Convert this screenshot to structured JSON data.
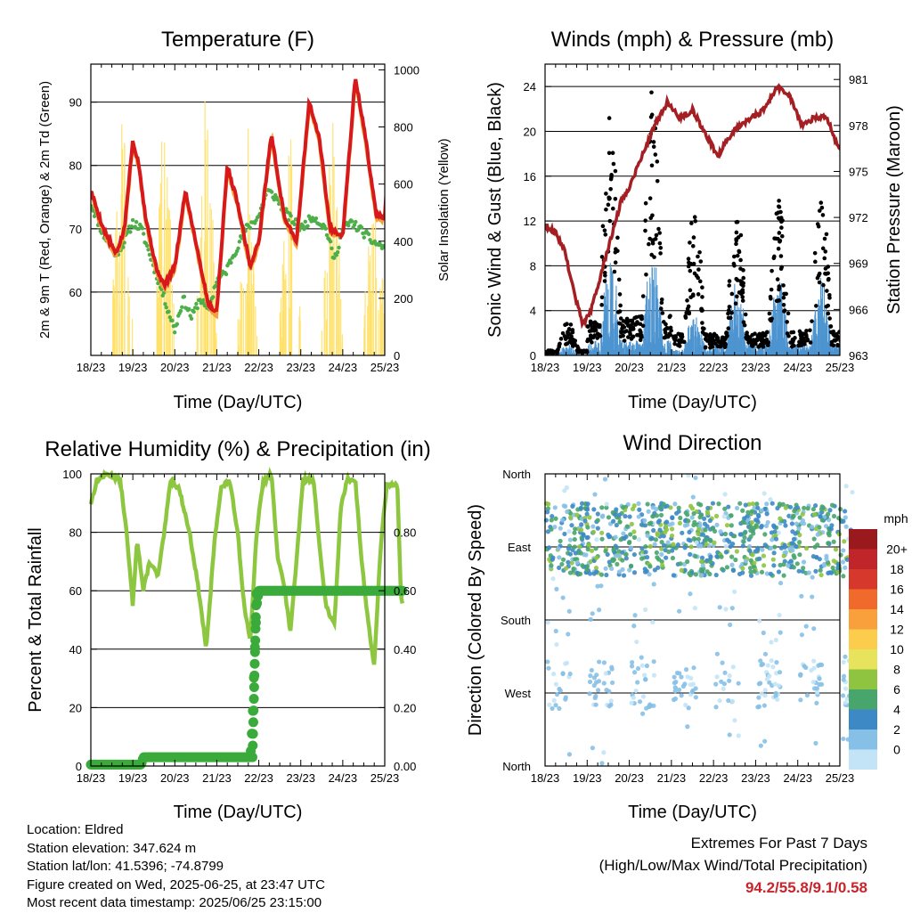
{
  "chart_data": [
    {
      "id": "temperature",
      "type": "line",
      "title": "Temperature (F)",
      "xlabel": "Time (Day/UTC)",
      "ylabel": "2m & 9m T (Red, Orange) & 2m Td (Green)",
      "ylabel_right": "Solar Insolation (Yellow)",
      "x_ticks": [
        "18/23",
        "19/23",
        "20/23",
        "21/23",
        "22/23",
        "23/23",
        "24/23",
        "25/23"
      ],
      "ylim": [
        50,
        96
      ],
      "y_ticks": [
        60,
        70,
        80,
        90
      ],
      "ylim_right": [
        0,
        1020
      ],
      "y_ticks_right": [
        0,
        200,
        400,
        600,
        800,
        1000
      ],
      "grid": true,
      "series": [
        {
          "color": "#d7191c",
          "axis": "left",
          "points": [
            [
              0,
              76
            ],
            [
              0.3,
              70
            ],
            [
              0.6,
              66
            ],
            [
              0.8,
              70
            ],
            [
              1.0,
              84
            ],
            [
              1.15,
              80
            ],
            [
              1.3,
              72
            ],
            [
              1.55,
              64
            ],
            [
              1.75,
              61
            ],
            [
              2.0,
              64
            ],
            [
              2.25,
              76
            ],
            [
              2.5,
              68
            ],
            [
              2.8,
              58
            ],
            [
              3.0,
              57
            ],
            [
              3.25,
              80
            ],
            [
              3.5,
              74
            ],
            [
              3.8,
              64
            ],
            [
              4.0,
              68
            ],
            [
              4.3,
              85
            ],
            [
              4.6,
              72
            ],
            [
              4.9,
              68
            ],
            [
              5.2,
              90
            ],
            [
              5.45,
              84
            ],
            [
              5.7,
              70
            ],
            [
              6.0,
              69
            ],
            [
              6.3,
              94
            ],
            [
              6.55,
              84
            ],
            [
              6.8,
              72
            ],
            [
              7.0,
              72
            ],
            [
              7.2,
              91
            ],
            [
              7.35,
              88
            ],
            [
              7.42,
              82
            ]
          ]
        },
        {
          "color": "#f4a23c",
          "axis": "left",
          "points": [
            [
              0,
              75.5
            ],
            [
              0.3,
              69.5
            ],
            [
              0.6,
              65.5
            ],
            [
              0.8,
              69.5
            ],
            [
              1.0,
              83.5
            ],
            [
              1.15,
              79.5
            ],
            [
              1.3,
              71.5
            ],
            [
              1.55,
              63.5
            ],
            [
              1.75,
              60.5
            ],
            [
              2.0,
              63.5
            ],
            [
              2.25,
              75.5
            ],
            [
              2.5,
              67.5
            ],
            [
              2.8,
              57.5
            ],
            [
              3.0,
              56.5
            ],
            [
              3.25,
              79.5
            ],
            [
              3.5,
              73.5
            ],
            [
              3.8,
              63.5
            ],
            [
              4.0,
              67.5
            ],
            [
              4.3,
              84.5
            ],
            [
              4.6,
              71.5
            ],
            [
              4.9,
              67.5
            ],
            [
              5.2,
              89.5
            ],
            [
              5.45,
              83.5
            ],
            [
              5.7,
              69.5
            ],
            [
              6.0,
              68.5
            ],
            [
              6.3,
              93.5
            ],
            [
              6.55,
              83.5
            ],
            [
              6.8,
              71.5
            ],
            [
              7.0,
              71.5
            ],
            [
              7.2,
              90.5
            ],
            [
              7.35,
              87.5
            ],
            [
              7.42,
              81.5
            ]
          ]
        },
        {
          "color": "#4daf4a",
          "axis": "left",
          "style": "dots",
          "points": [
            [
              0,
              74
            ],
            [
              0.3,
              69
            ],
            [
              0.6,
              66
            ],
            [
              0.8,
              68
            ],
            [
              1.0,
              71
            ],
            [
              1.2,
              70
            ],
            [
              1.4,
              66
            ],
            [
              1.6,
              62
            ],
            [
              1.8,
              58
            ],
            [
              2.0,
              54
            ],
            [
              2.2,
              59
            ],
            [
              2.4,
              56
            ],
            [
              2.6,
              59
            ],
            [
              2.8,
              57
            ],
            [
              3.0,
              62
            ],
            [
              3.2,
              63
            ],
            [
              3.4,
              66
            ],
            [
              3.7,
              70
            ],
            [
              4.0,
              72
            ],
            [
              4.2,
              76
            ],
            [
              4.4,
              75
            ],
            [
              4.7,
              72
            ],
            [
              5.0,
              70
            ],
            [
              5.3,
              72
            ],
            [
              5.6,
              70
            ],
            [
              5.8,
              65
            ],
            [
              6.0,
              70
            ],
            [
              6.2,
              71
            ],
            [
              6.4,
              70
            ],
            [
              6.7,
              68
            ],
            [
              7.0,
              67
            ],
            [
              7.2,
              70
            ],
            [
              7.42,
              68
            ]
          ]
        },
        {
          "color": "#ffe066",
          "axis": "right",
          "style": "spikes",
          "points": [
            [
              0.75,
              960
            ],
            [
              1.75,
              940
            ],
            [
              2.75,
              1000
            ],
            [
              3.75,
              810
            ],
            [
              4.75,
              850
            ],
            [
              5.75,
              950
            ],
            [
              6.75,
              920
            ],
            [
              7.25,
              880
            ]
          ]
        }
      ]
    },
    {
      "id": "winds",
      "type": "scatter",
      "title": "Winds (mph) & Pressure (mb)",
      "xlabel": "Time (Day/UTC)",
      "ylabel": "Sonic Wind & Gust (Blue, Black)",
      "ylabel_right": "Station Pressure (Maroon)",
      "x_ticks": [
        "18/23",
        "19/23",
        "20/23",
        "21/23",
        "22/23",
        "23/23",
        "24/23",
        "25/23"
      ],
      "ylim": [
        0,
        26
      ],
      "y_ticks": [
        0,
        4,
        8,
        12,
        16,
        20,
        24
      ],
      "ylim_right": [
        963,
        982
      ],
      "y_ticks_right": [
        963,
        966,
        969,
        972,
        975,
        978,
        981
      ],
      "grid": true,
      "daily_peak_gust": [
        3,
        22,
        24,
        13,
        13,
        14,
        15,
        12
      ],
      "daily_peak_wind": [
        1,
        9,
        9,
        4,
        7,
        7,
        7,
        6
      ],
      "series": [
        {
          "color": "#a31f24",
          "axis": "right",
          "points": [
            [
              0,
              971.5
            ],
            [
              0.25,
              971
            ],
            [
              0.45,
              970
            ],
            [
              0.7,
              967
            ],
            [
              0.9,
              965
            ],
            [
              1.1,
              966
            ],
            [
              1.3,
              968
            ],
            [
              1.6,
              971
            ],
            [
              1.8,
              973
            ],
            [
              2.0,
              974
            ],
            [
              2.3,
              976
            ],
            [
              2.6,
              978
            ],
            [
              2.9,
              979.5
            ],
            [
              3.2,
              978.5
            ],
            [
              3.5,
              979
            ],
            [
              3.8,
              977.5
            ],
            [
              4.1,
              976
            ],
            [
              4.3,
              977
            ],
            [
              4.6,
              978
            ],
            [
              4.9,
              978.5
            ],
            [
              5.2,
              979
            ],
            [
              5.5,
              980.5
            ],
            [
              5.8,
              980
            ],
            [
              6.1,
              978
            ],
            [
              6.4,
              978.5
            ],
            [
              6.7,
              978.5
            ],
            [
              6.9,
              977
            ],
            [
              7.1,
              976
            ],
            [
              7.42,
              975.5
            ]
          ]
        }
      ]
    },
    {
      "id": "humidity",
      "type": "line",
      "title": "Relative Humidity (%) & Precipitation (in)",
      "xlabel": "Time (Day/UTC)",
      "ylabel": "Percent & Total Rainfall",
      "x_ticks": [
        "18/23",
        "19/23",
        "20/23",
        "21/23",
        "22/23",
        "23/23",
        "24/23",
        "25/23"
      ],
      "ylim": [
        0,
        100
      ],
      "y_ticks": [
        0,
        20,
        40,
        60,
        80,
        100
      ],
      "y_ticks_right": [
        "0.00",
        "0.20",
        "0.40",
        "0.60",
        "0.80"
      ],
      "grid": true,
      "series": [
        {
          "color": "#8dc63f",
          "axis": "left",
          "points": [
            [
              0,
              90
            ],
            [
              0.15,
              98
            ],
            [
              0.4,
              100
            ],
            [
              0.7,
              98
            ],
            [
              0.85,
              80
            ],
            [
              1.0,
              55
            ],
            [
              1.1,
              78
            ],
            [
              1.25,
              60
            ],
            [
              1.4,
              70
            ],
            [
              1.6,
              65
            ],
            [
              1.75,
              80
            ],
            [
              1.9,
              98
            ],
            [
              2.1,
              95
            ],
            [
              2.35,
              80
            ],
            [
              2.55,
              62
            ],
            [
              2.75,
              40
            ],
            [
              2.95,
              78
            ],
            [
              3.1,
              95
            ],
            [
              3.3,
              98
            ],
            [
              3.5,
              80
            ],
            [
              3.65,
              55
            ],
            [
              3.8,
              43
            ],
            [
              3.95,
              80
            ],
            [
              4.1,
              97
            ],
            [
              4.3,
              100
            ],
            [
              4.45,
              72
            ],
            [
              4.6,
              62
            ],
            [
              4.75,
              46
            ],
            [
              4.9,
              70
            ],
            [
              5.05,
              98
            ],
            [
              5.3,
              98
            ],
            [
              5.45,
              75
            ],
            [
              5.6,
              55
            ],
            [
              5.8,
              48
            ],
            [
              5.95,
              88
            ],
            [
              6.1,
              98
            ],
            [
              6.3,
              98
            ],
            [
              6.45,
              70
            ],
            [
              6.6,
              50
            ],
            [
              6.75,
              34
            ],
            [
              6.9,
              75
            ],
            [
              7.05,
              96
            ],
            [
              7.3,
              97
            ],
            [
              7.38,
              60
            ],
            [
              7.42,
              55
            ]
          ]
        },
        {
          "color": "#3aaa3a",
          "axis": "left",
          "style": "dots",
          "points": [
            [
              0,
              0.5
            ],
            [
              1.2,
              0.5
            ],
            [
              1.25,
              3
            ],
            [
              3.8,
              3
            ],
            [
              3.85,
              15
            ],
            [
              3.9,
              38
            ],
            [
              3.95,
              55
            ],
            [
              4.0,
              60
            ],
            [
              7.42,
              60
            ]
          ]
        }
      ]
    },
    {
      "id": "direction",
      "type": "scatter",
      "title": "Wind Direction",
      "xlabel": "Time (Day/UTC)",
      "ylabel": "Direction (Colored By Speed)",
      "x_ticks": [
        "18/23",
        "19/23",
        "20/23",
        "21/23",
        "22/23",
        "23/23",
        "24/23",
        "25/23"
      ],
      "y_ticks": [
        "North",
        "West",
        "South",
        "East",
        "North"
      ],
      "ylim": [
        0,
        360
      ],
      "grid": true,
      "legend": {
        "title": "mph",
        "labels": [
          "20+",
          "18",
          "16",
          "14",
          "12",
          "10",
          "8",
          "6",
          "4",
          "2",
          "0"
        ],
        "colors": [
          "#99191c",
          "#c0252a",
          "#d7382c",
          "#f06a2b",
          "#f99f3b",
          "#fccd4c",
          "#e8e35c",
          "#8ec43f",
          "#48a56b",
          "#3c89c6",
          "#87c0e6",
          "#c3e4f6"
        ],
        "position": "right"
      }
    }
  ],
  "info": {
    "location": "Location: Eldred",
    "elevation": "Station elevation: 347.624 m",
    "latlon": "Station lat/lon: 41.5396; -74.8799",
    "created": "Figure created on Wed, 2025-06-25, at 23:47 UTC",
    "recent": "Most recent data timestamp: 2025/06/25 23:15:00"
  },
  "extremes": {
    "line1": "Extremes For Past 7 Days",
    "line2": "(High/Low/Max Wind/Total Precipitation)",
    "values": "94.2/55.8/9.1/0.58",
    "value_color": "#c8242b"
  }
}
